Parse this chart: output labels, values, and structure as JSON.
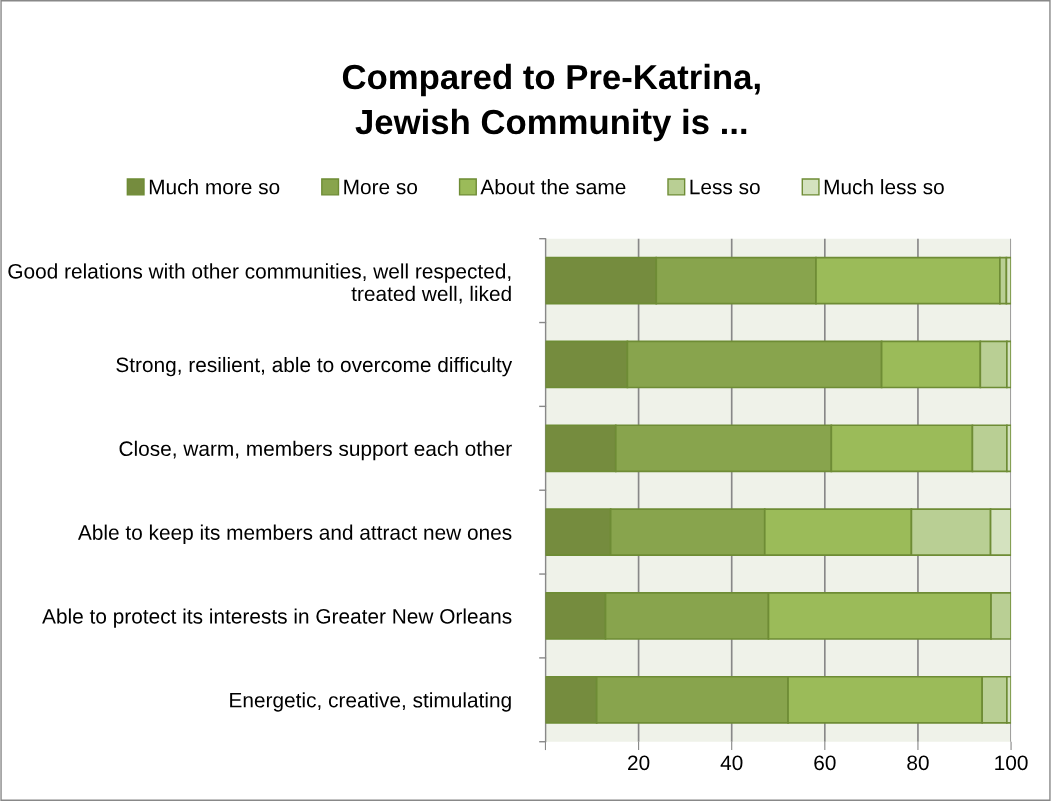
{
  "chart_data": {
    "type": "bar",
    "orientation": "horizontal",
    "stacked": true,
    "title": "Compared to Pre-Katrina,\nJewish Community is ...",
    "categories": [
      "Good relations with other communities, well respected, treated well, liked",
      "Strong, resilient, able to overcome difficulty",
      "Close, warm, members support each other",
      "Able to keep its members and attract new ones",
      "Able to protect its interests in Greater New Orleans",
      "Energetic, creative, stimulating"
    ],
    "series": [
      {
        "name": "Much more so",
        "color": "#758c3e",
        "values": [
          23.8,
          17.6,
          15.1,
          14.0,
          12.9,
          11.0
        ]
      },
      {
        "name": "More so",
        "color": "#88a44d",
        "values": [
          34.3,
          54.6,
          46.3,
          33.1,
          35.0,
          41.1
        ]
      },
      {
        "name": "About the same",
        "color": "#9bbb59",
        "values": [
          39.5,
          21.2,
          30.3,
          31.5,
          47.8,
          41.7
        ]
      },
      {
        "name": "Less so",
        "color": "#b9cf94",
        "values": [
          1.4,
          5.7,
          7.4,
          17.0,
          4.3,
          5.3
        ]
      },
      {
        "name": "Much less so",
        "color": "#d4e2bf",
        "values": [
          1.0,
          0.9,
          0.9,
          4.4,
          null,
          0.9
        ]
      }
    ],
    "xlim": [
      0,
      100
    ],
    "xticks": [
      {
        "value": 0,
        "label": null
      },
      20,
      40,
      60,
      80,
      100
    ],
    "grid": "x",
    "legend": "top"
  }
}
